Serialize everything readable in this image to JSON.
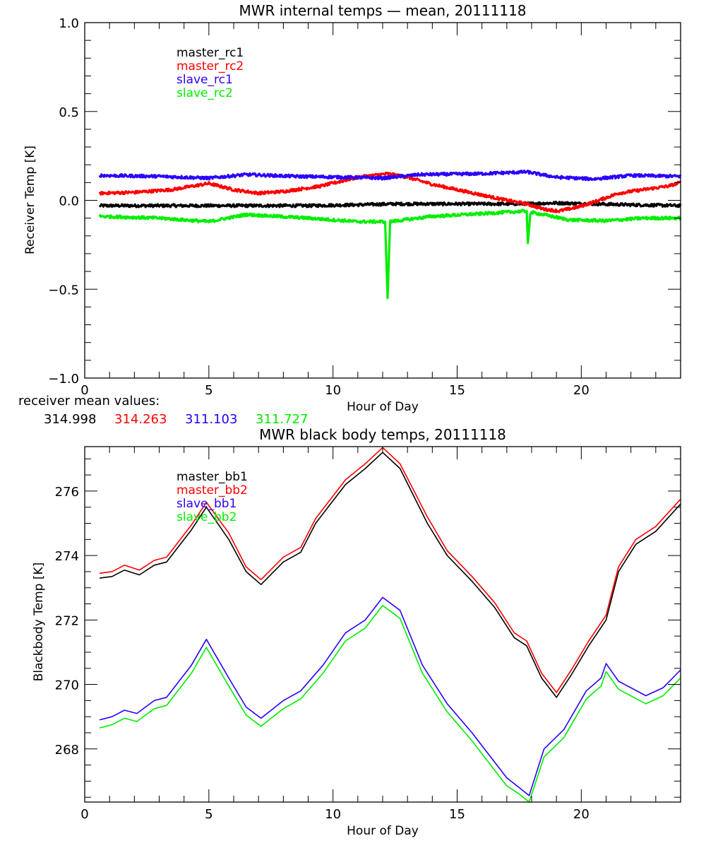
{
  "chart_data": [
    {
      "type": "line",
      "title": "MWR internal temps — mean, 20111118",
      "xlabel": "Hour of Day",
      "ylabel": "Receiver Temp [K]",
      "xlim": [
        0,
        24
      ],
      "ylim": [
        -1.0,
        1.0
      ],
      "x_ticks": [
        0,
        5,
        10,
        15,
        20
      ],
      "x_tick_labels": [
        "0",
        "5",
        "10",
        "15",
        "20"
      ],
      "x_minor_step": 1,
      "y_ticks": [
        -1.0,
        -0.5,
        0.0,
        0.5,
        1.0
      ],
      "y_tick_labels": [
        "−1.0",
        "−0.5",
        "0.0",
        "0.5",
        "1.0"
      ],
      "y_minor_step": 0.1,
      "grid": false,
      "legend_position": "top-left",
      "noisy": true,
      "series": [
        {
          "name": "master_rc1",
          "color": "#000000",
          "x": [
            0.6,
            3,
            6,
            9,
            11,
            12.5,
            15,
            17.5,
            19,
            20.5,
            22,
            24
          ],
          "y": [
            -0.03,
            -0.03,
            -0.03,
            -0.03,
            -0.025,
            -0.02,
            -0.02,
            -0.02,
            -0.015,
            -0.02,
            -0.025,
            -0.03
          ]
        },
        {
          "name": "master_rc2",
          "color": "#ff0000",
          "x": [
            0.6,
            2,
            3.5,
            5,
            6,
            7,
            8,
            9.5,
            11,
            12.2,
            13,
            14,
            15,
            16,
            17,
            17.8,
            18.5,
            19.1,
            19.8,
            20.5,
            21.5,
            22.5,
            23.5,
            24
          ],
          "y": [
            0.04,
            0.045,
            0.06,
            0.095,
            0.06,
            0.04,
            0.05,
            0.08,
            0.13,
            0.15,
            0.13,
            0.09,
            0.06,
            0.03,
            0.0,
            -0.02,
            -0.05,
            -0.06,
            -0.04,
            -0.01,
            0.04,
            0.06,
            0.08,
            0.1
          ]
        },
        {
          "name": "slave_rc1",
          "color": "#2a00ff",
          "x": [
            0.6,
            3,
            5,
            6.5,
            8.5,
            10.5,
            12,
            13.5,
            16,
            17.8,
            19,
            20.5,
            22,
            24
          ],
          "y": [
            0.14,
            0.135,
            0.125,
            0.145,
            0.135,
            0.13,
            0.125,
            0.145,
            0.15,
            0.16,
            0.13,
            0.12,
            0.14,
            0.135
          ]
        },
        {
          "name": "slave_rc2",
          "color": "#00ee00",
          "x": [
            0.6,
            3,
            5,
            6.5,
            9,
            11,
            12.1,
            12.2,
            12.3,
            14,
            16,
            17.8,
            17.85,
            17.95,
            18.1,
            19.5,
            21,
            22.5,
            24
          ],
          "y": [
            -0.09,
            -0.1,
            -0.12,
            -0.08,
            -0.1,
            -0.12,
            -0.12,
            -0.55,
            -0.12,
            -0.09,
            -0.075,
            -0.06,
            -0.24,
            -0.07,
            -0.07,
            -0.11,
            -0.115,
            -0.1,
            -0.1
          ]
        }
      ]
    },
    {
      "type": "line",
      "title": "MWR black body temps, 20111118",
      "xlabel": "Hour of Day",
      "ylabel": "Blackbody Temp [K]",
      "xlim": [
        0,
        24
      ],
      "ylim": [
        266.35,
        277.38
      ],
      "x_ticks": [
        0,
        5,
        10,
        15,
        20
      ],
      "x_tick_labels": [
        "0",
        "5",
        "10",
        "15",
        "20"
      ],
      "x_minor_step": 1,
      "y_ticks": [
        268,
        270,
        272,
        274,
        276
      ],
      "y_tick_labels": [
        "268",
        "270",
        "272",
        "274",
        "276"
      ],
      "y_minor_step": 0.5,
      "grid": false,
      "legend_position": "top-left",
      "noisy": false,
      "series": [
        {
          "name": "master_bb1",
          "color": "#000000",
          "x": [
            0.6,
            1.1,
            1.6,
            2.2,
            2.8,
            3.3,
            4.3,
            4.9,
            5.8,
            6.5,
            7.1,
            8.0,
            8.7,
            9.3,
            10.5,
            11.3,
            12.0,
            12.7,
            13.8,
            14.6,
            15.6,
            16.5,
            17.3,
            17.8,
            18.4,
            19.0,
            19.6,
            20.3,
            21.0,
            21.5,
            22.2,
            23.0,
            24.0
          ],
          "y": [
            273.3,
            273.35,
            273.55,
            273.4,
            273.7,
            273.8,
            274.8,
            275.5,
            274.5,
            273.5,
            273.1,
            273.8,
            274.1,
            275.0,
            276.2,
            276.7,
            277.2,
            276.7,
            275.0,
            274.0,
            273.2,
            272.4,
            271.45,
            271.2,
            270.2,
            269.6,
            270.3,
            271.2,
            272.0,
            273.5,
            274.35,
            274.75,
            275.6
          ]
        },
        {
          "name": "master_bb2",
          "color": "#ff0000",
          "x": [
            0.6,
            1.1,
            1.6,
            2.2,
            2.8,
            3.3,
            4.3,
            4.9,
            5.8,
            6.5,
            7.1,
            8.0,
            8.7,
            9.3,
            10.5,
            11.3,
            12.0,
            12.7,
            13.8,
            14.6,
            15.6,
            16.5,
            17.3,
            17.8,
            18.4,
            19.0,
            19.6,
            20.3,
            21.0,
            21.5,
            22.2,
            23.0,
            24.0
          ],
          "y": [
            273.45,
            273.5,
            273.7,
            273.55,
            273.85,
            273.95,
            274.95,
            275.65,
            274.7,
            273.65,
            273.25,
            273.95,
            274.25,
            275.15,
            276.35,
            276.85,
            277.35,
            276.85,
            275.2,
            274.15,
            273.35,
            272.55,
            271.6,
            271.35,
            270.35,
            269.75,
            270.45,
            271.35,
            272.15,
            273.65,
            274.5,
            274.9,
            275.75
          ]
        },
        {
          "name": "slave_bb1",
          "color": "#2a00ff",
          "x": [
            0.6,
            1.1,
            1.6,
            2.1,
            2.8,
            3.3,
            4.3,
            4.9,
            5.8,
            6.5,
            7.1,
            8.0,
            8.7,
            9.6,
            10.5,
            11.3,
            12.0,
            12.7,
            13.6,
            14.6,
            15.6,
            16.3,
            17.0,
            17.5,
            17.9,
            18.5,
            19.3,
            20.2,
            20.8,
            21.0,
            21.5,
            22.6,
            23.3,
            24.0
          ],
          "y": [
            268.9,
            269.0,
            269.2,
            269.1,
            269.5,
            269.6,
            270.6,
            271.4,
            270.2,
            269.3,
            268.95,
            269.5,
            269.8,
            270.6,
            271.6,
            272.0,
            272.7,
            272.3,
            270.6,
            269.4,
            268.5,
            267.8,
            267.1,
            266.8,
            266.55,
            268.0,
            268.6,
            269.8,
            270.2,
            270.65,
            270.1,
            269.65,
            269.9,
            270.45
          ]
        },
        {
          "name": "slave_bb2",
          "color": "#00ee00",
          "x": [
            0.6,
            1.1,
            1.6,
            2.1,
            2.8,
            3.3,
            4.3,
            4.9,
            5.8,
            6.5,
            7.1,
            8.0,
            8.7,
            9.6,
            10.5,
            11.3,
            12.0,
            12.7,
            13.6,
            14.6,
            15.6,
            16.3,
            17.0,
            17.5,
            17.9,
            18.5,
            19.3,
            20.2,
            20.8,
            21.0,
            21.5,
            22.6,
            23.3,
            24.0
          ],
          "y": [
            268.65,
            268.75,
            268.95,
            268.85,
            269.25,
            269.35,
            270.35,
            271.15,
            269.95,
            269.05,
            268.7,
            269.25,
            269.55,
            270.35,
            271.35,
            271.75,
            272.45,
            272.05,
            270.35,
            269.15,
            268.25,
            267.55,
            266.85,
            266.6,
            266.35,
            267.75,
            268.35,
            269.55,
            269.95,
            270.4,
            269.85,
            269.4,
            269.65,
            270.2
          ]
        }
      ]
    }
  ],
  "receiver_means": {
    "label": "receiver mean values:",
    "values": [
      {
        "text": "314.998",
        "color": "#000000"
      },
      {
        "text": "314.263",
        "color": "#ff0000"
      },
      {
        "text": "311.103",
        "color": "#2a00ff"
      },
      {
        "text": "311.727",
        "color": "#00ee00"
      }
    ]
  }
}
